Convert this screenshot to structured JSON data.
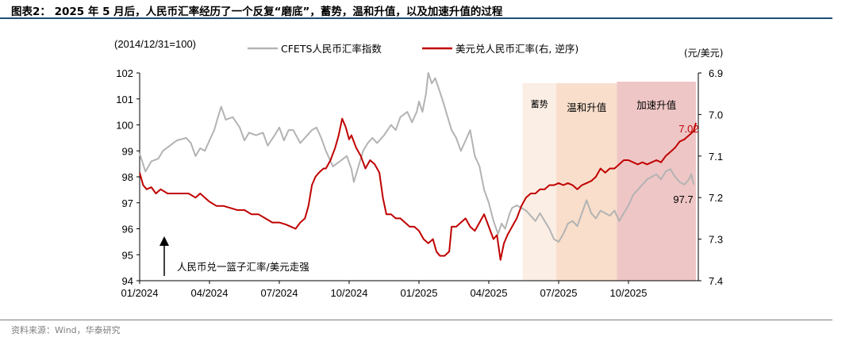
{
  "header": {
    "title": "图表2： 2025 年 5 月后，人民币汇率经历了一个反复“磨底”，蓄势，温和升值，以及加速升值的过程"
  },
  "footer": {
    "source": "资料来源：Wind，华泰研究"
  },
  "colors": {
    "cfets": "#b3b3b3",
    "usdcny": "#c00000",
    "zone_xuhshi": "#fbeee4",
    "zone_wenhe": "#f8decb",
    "zone_jiasu": "#efc6c6",
    "axis": "#000000"
  },
  "chart_data": {
    "type": "line",
    "title": "",
    "left_axis": {
      "unit_label": "(2014/12/31=100)",
      "ylim": [
        94,
        102
      ],
      "ticks": [
        "94",
        "95",
        "96",
        "97",
        "98",
        "99",
        "100",
        "101",
        "102"
      ]
    },
    "right_axis": {
      "unit_label": "(元/美元)",
      "ylim": [
        6.9,
        7.4
      ],
      "reversed": true,
      "ticks": [
        "6.9",
        "7.0",
        "7.1",
        "7.2",
        "7.3",
        "7.4"
      ]
    },
    "x_ticks": [
      "01/2024",
      "04/2024",
      "07/2024",
      "10/2024",
      "01/2025",
      "04/2025",
      "07/2025",
      "10/2025"
    ],
    "x_domain_months": [
      0,
      24
    ],
    "legend": [
      {
        "name": "CFETS人民币汇率指数",
        "color_key": "cfets"
      },
      {
        "name": "美元兑人民币汇率(右, 逆序)",
        "color_key": "usdcny"
      }
    ],
    "zones": [
      {
        "label": "蓄势",
        "start": 16.45,
        "end": 17.9,
        "color_key": "zone_xuhshi"
      },
      {
        "label": "温和升值",
        "start": 17.9,
        "end": 20.5,
        "color_key": "zone_wenhe"
      },
      {
        "label": "加速升值",
        "start": 20.5,
        "end": 23.9,
        "color_key": "zone_jiasu"
      }
    ],
    "series": [
      {
        "name": "CFETS人民币汇率指数",
        "axis": "left",
        "color_key": "cfets",
        "end_label": "97.7",
        "points": [
          [
            0,
            98.9
          ],
          [
            0.25,
            98.2
          ],
          [
            0.5,
            98.6
          ],
          [
            0.8,
            98.7
          ],
          [
            1,
            99.0
          ],
          [
            1.3,
            99.2
          ],
          [
            1.6,
            99.4
          ],
          [
            2,
            99.5
          ],
          [
            2.2,
            99.3
          ],
          [
            2.4,
            98.8
          ],
          [
            2.6,
            99.1
          ],
          [
            2.8,
            99.0
          ],
          [
            3,
            99.4
          ],
          [
            3.2,
            99.8
          ],
          [
            3.4,
            100.4
          ],
          [
            3.5,
            100.7
          ],
          [
            3.7,
            100.2
          ],
          [
            4,
            100.3
          ],
          [
            4.3,
            99.9
          ],
          [
            4.5,
            99.4
          ],
          [
            4.7,
            99.7
          ],
          [
            5,
            99.6
          ],
          [
            5.3,
            99.7
          ],
          [
            5.5,
            99.2
          ],
          [
            5.8,
            99.6
          ],
          [
            6,
            99.9
          ],
          [
            6.2,
            99.4
          ],
          [
            6.4,
            99.8
          ],
          [
            6.6,
            99.8
          ],
          [
            6.9,
            99.3
          ],
          [
            7.2,
            99.6
          ],
          [
            7.4,
            99.8
          ],
          [
            7.6,
            99.9
          ],
          [
            7.8,
            99.5
          ],
          [
            8,
            99.0
          ],
          [
            8.3,
            98.4
          ],
          [
            8.6,
            98.6
          ],
          [
            8.9,
            98.8
          ],
          [
            9.1,
            98.3
          ],
          [
            9.2,
            97.8
          ],
          [
            9.4,
            98.4
          ],
          [
            9.6,
            99.0
          ],
          [
            9.8,
            99.3
          ],
          [
            10,
            99.5
          ],
          [
            10.2,
            99.3
          ],
          [
            10.5,
            99.6
          ],
          [
            10.8,
            100.0
          ],
          [
            11,
            99.8
          ],
          [
            11.2,
            100.3
          ],
          [
            11.5,
            100.5
          ],
          [
            11.7,
            100.1
          ],
          [
            11.9,
            100.5
          ],
          [
            12,
            100.9
          ],
          [
            12.15,
            100.5
          ],
          [
            12.3,
            101.2
          ],
          [
            12.4,
            102.0
          ],
          [
            12.55,
            101.6
          ],
          [
            12.7,
            101.8
          ],
          [
            12.85,
            101.4
          ],
          [
            13,
            101.0
          ],
          [
            13.2,
            100.4
          ],
          [
            13.4,
            99.8
          ],
          [
            13.6,
            99.5
          ],
          [
            13.8,
            99.0
          ],
          [
            14,
            99.4
          ],
          [
            14.2,
            99.8
          ],
          [
            14.4,
            98.8
          ],
          [
            14.6,
            98.4
          ],
          [
            14.8,
            97.5
          ],
          [
            15,
            97.0
          ],
          [
            15.2,
            96.3
          ],
          [
            15.4,
            95.8
          ],
          [
            15.55,
            96.2
          ],
          [
            15.7,
            96.0
          ],
          [
            15.9,
            96.6
          ],
          [
            16,
            96.8
          ],
          [
            16.2,
            96.9
          ],
          [
            16.4,
            96.8
          ],
          [
            16.6,
            96.7
          ],
          [
            16.8,
            96.5
          ],
          [
            17,
            96.3
          ],
          [
            17.2,
            96.6
          ],
          [
            17.4,
            96.3
          ],
          [
            17.6,
            96.0
          ],
          [
            17.8,
            95.6
          ],
          [
            18,
            95.5
          ],
          [
            18.2,
            95.8
          ],
          [
            18.4,
            96.2
          ],
          [
            18.6,
            96.3
          ],
          [
            18.8,
            96.1
          ],
          [
            19,
            96.6
          ],
          [
            19.2,
            97.1
          ],
          [
            19.4,
            96.6
          ],
          [
            19.6,
            96.4
          ],
          [
            19.8,
            96.7
          ],
          [
            20,
            96.6
          ],
          [
            20.2,
            96.5
          ],
          [
            20.4,
            96.7
          ],
          [
            20.6,
            96.3
          ],
          [
            20.8,
            96.6
          ],
          [
            21,
            96.9
          ],
          [
            21.2,
            97.3
          ],
          [
            21.4,
            97.5
          ],
          [
            21.6,
            97.7
          ],
          [
            21.8,
            97.9
          ],
          [
            22,
            98.0
          ],
          [
            22.2,
            98.1
          ],
          [
            22.4,
            97.9
          ],
          [
            22.6,
            98.2
          ],
          [
            22.8,
            98.3
          ],
          [
            23,
            98.0
          ],
          [
            23.2,
            97.8
          ],
          [
            23.4,
            97.7
          ],
          [
            23.6,
            97.9
          ],
          [
            23.7,
            98.1
          ],
          [
            23.8,
            97.7
          ]
        ]
      },
      {
        "name": "美元兑人民币汇率(右, 逆序)",
        "axis": "right",
        "color_key": "usdcny",
        "end_label": "7.02",
        "points": [
          [
            0,
            7.14
          ],
          [
            0.15,
            7.17
          ],
          [
            0.3,
            7.18
          ],
          [
            0.5,
            7.175
          ],
          [
            0.7,
            7.19
          ],
          [
            0.9,
            7.18
          ],
          [
            1.2,
            7.19
          ],
          [
            1.5,
            7.19
          ],
          [
            1.8,
            7.19
          ],
          [
            2.1,
            7.19
          ],
          [
            2.4,
            7.2
          ],
          [
            2.6,
            7.19
          ],
          [
            2.8,
            7.2
          ],
          [
            3,
            7.21
          ],
          [
            3.3,
            7.22
          ],
          [
            3.6,
            7.22
          ],
          [
            3.9,
            7.225
          ],
          [
            4.2,
            7.23
          ],
          [
            4.5,
            7.23
          ],
          [
            4.8,
            7.24
          ],
          [
            5.1,
            7.24
          ],
          [
            5.4,
            7.25
          ],
          [
            5.7,
            7.26
          ],
          [
            6,
            7.26
          ],
          [
            6.3,
            7.265
          ],
          [
            6.5,
            7.27
          ],
          [
            6.7,
            7.275
          ],
          [
            6.9,
            7.26
          ],
          [
            7.1,
            7.25
          ],
          [
            7.25,
            7.22
          ],
          [
            7.4,
            7.17
          ],
          [
            7.55,
            7.15
          ],
          [
            7.7,
            7.14
          ],
          [
            7.9,
            7.13
          ],
          [
            8,
            7.13
          ],
          [
            8.2,
            7.11
          ],
          [
            8.4,
            7.08
          ],
          [
            8.55,
            7.05
          ],
          [
            8.7,
            7.01
          ],
          [
            8.85,
            7.03
          ],
          [
            9,
            7.06
          ],
          [
            9.1,
            7.05
          ],
          [
            9.3,
            7.08
          ],
          [
            9.5,
            7.1
          ],
          [
            9.7,
            7.13
          ],
          [
            9.9,
            7.11
          ],
          [
            10.1,
            7.12
          ],
          [
            10.3,
            7.14
          ],
          [
            10.45,
            7.2
          ],
          [
            10.6,
            7.24
          ],
          [
            10.8,
            7.24
          ],
          [
            11,
            7.25
          ],
          [
            11.2,
            7.25
          ],
          [
            11.4,
            7.26
          ],
          [
            11.6,
            7.27
          ],
          [
            11.8,
            7.27
          ],
          [
            12,
            7.28
          ],
          [
            12.2,
            7.3
          ],
          [
            12.4,
            7.31
          ],
          [
            12.6,
            7.3
          ],
          [
            12.75,
            7.33
          ],
          [
            12.9,
            7.34
          ],
          [
            13.1,
            7.34
          ],
          [
            13.3,
            7.33
          ],
          [
            13.4,
            7.27
          ],
          [
            13.6,
            7.27
          ],
          [
            13.8,
            7.26
          ],
          [
            14,
            7.25
          ],
          [
            14.2,
            7.27
          ],
          [
            14.4,
            7.28
          ],
          [
            14.6,
            7.26
          ],
          [
            14.8,
            7.24
          ],
          [
            15,
            7.27
          ],
          [
            15.2,
            7.3
          ],
          [
            15.35,
            7.29
          ],
          [
            15.5,
            7.35
          ],
          [
            15.65,
            7.31
          ],
          [
            15.8,
            7.29
          ],
          [
            16,
            7.27
          ],
          [
            16.2,
            7.25
          ],
          [
            16.4,
            7.22
          ],
          [
            16.6,
            7.2
          ],
          [
            16.8,
            7.19
          ],
          [
            17,
            7.19
          ],
          [
            17.2,
            7.18
          ],
          [
            17.4,
            7.18
          ],
          [
            17.6,
            7.17
          ],
          [
            17.8,
            7.17
          ],
          [
            18,
            7.165
          ],
          [
            18.2,
            7.17
          ],
          [
            18.4,
            7.165
          ],
          [
            18.6,
            7.17
          ],
          [
            18.8,
            7.18
          ],
          [
            19,
            7.17
          ],
          [
            19.2,
            7.165
          ],
          [
            19.4,
            7.16
          ],
          [
            19.6,
            7.15
          ],
          [
            19.8,
            7.13
          ],
          [
            20,
            7.14
          ],
          [
            20.2,
            7.13
          ],
          [
            20.4,
            7.13
          ],
          [
            20.6,
            7.12
          ],
          [
            20.8,
            7.11
          ],
          [
            21,
            7.11
          ],
          [
            21.2,
            7.115
          ],
          [
            21.4,
            7.12
          ],
          [
            21.6,
            7.115
          ],
          [
            21.8,
            7.12
          ],
          [
            22,
            7.115
          ],
          [
            22.2,
            7.11
          ],
          [
            22.4,
            7.115
          ],
          [
            22.6,
            7.1
          ],
          [
            22.8,
            7.09
          ],
          [
            23,
            7.08
          ],
          [
            23.2,
            7.065
          ],
          [
            23.4,
            7.06
          ],
          [
            23.6,
            7.05
          ],
          [
            23.8,
            7.04
          ],
          [
            23.9,
            7.02
          ]
        ]
      }
    ],
    "annotation": {
      "text": "人民币兑一篮子汇率/美元走强",
      "arrow": "up"
    }
  }
}
